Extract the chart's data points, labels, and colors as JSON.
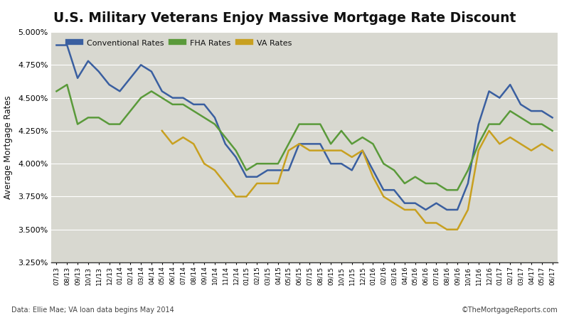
{
  "title": "U.S. Military Veterans Enjoy Massive Mortgage Rate Discount",
  "ylabel": "Average Mortgage Rates",
  "footnote_left": "Data: Ellie Mae; VA loan data begins May 2014",
  "footnote_right": "©TheMortgageReports.com",
  "ylim": [
    0.0325,
    0.05
  ],
  "yticks": [
    0.0325,
    0.035,
    0.0375,
    0.04,
    0.0425,
    0.045,
    0.0475,
    0.05
  ],
  "conventional_color": "#3a5fa0",
  "fha_color": "#5a9a3a",
  "va_color": "#c8a020",
  "line_width": 1.8,
  "bg_color": "#d8d8d0",
  "grid_color": "#ffffff",
  "x_labels": [
    "07/13",
    "08/13",
    "09/13",
    "10/13",
    "11/13",
    "12/13",
    "01/14",
    "02/14",
    "03/14",
    "04/14",
    "05/14",
    "06/14",
    "07/14",
    "08/14",
    "09/14",
    "10/14",
    "11/14",
    "12/14",
    "01/15",
    "02/15",
    "03/15",
    "04/15",
    "05/15",
    "06/15",
    "07/15",
    "08/15",
    "09/15",
    "10/15",
    "11/15",
    "12/15",
    "01/16",
    "02/16",
    "03/16",
    "04/16",
    "05/16",
    "06/16",
    "07/16",
    "08/16",
    "09/16",
    "10/16",
    "11/16",
    "12/16",
    "01/17",
    "02/17",
    "03/17",
    "04/17",
    "05/17",
    "06/17"
  ],
  "conventional": [
    0.049,
    0.049,
    0.0465,
    0.0478,
    0.047,
    0.046,
    0.0455,
    0.0465,
    0.0475,
    0.047,
    0.0455,
    0.045,
    0.045,
    0.0445,
    0.0445,
    0.0435,
    0.0415,
    0.0405,
    0.039,
    0.039,
    0.0395,
    0.0395,
    0.0395,
    0.0415,
    0.0415,
    0.0415,
    0.04,
    0.04,
    0.0395,
    0.041,
    0.0395,
    0.038,
    0.038,
    0.037,
    0.037,
    0.0365,
    0.037,
    0.0365,
    0.0365,
    0.0385,
    0.043,
    0.0455,
    0.045,
    0.046,
    0.0445,
    0.044,
    0.044,
    0.0435
  ],
  "fha": [
    0.0455,
    0.046,
    0.043,
    0.0435,
    0.0435,
    0.043,
    0.043,
    0.044,
    0.045,
    0.0455,
    0.045,
    0.0445,
    0.0445,
    0.044,
    0.0435,
    0.043,
    0.042,
    0.041,
    0.0395,
    0.04,
    0.04,
    0.04,
    0.0415,
    0.043,
    0.043,
    0.043,
    0.0415,
    0.0425,
    0.0415,
    0.042,
    0.0415,
    0.04,
    0.0395,
    0.0385,
    0.039,
    0.0385,
    0.0385,
    0.038,
    0.038,
    0.0395,
    0.0415,
    0.043,
    0.043,
    0.044,
    0.0435,
    0.043,
    0.043,
    0.0425
  ],
  "va": [
    null,
    null,
    null,
    null,
    null,
    null,
    null,
    null,
    null,
    null,
    0.0425,
    0.0415,
    0.042,
    0.0415,
    0.04,
    0.0395,
    0.0385,
    0.0375,
    0.0375,
    0.0385,
    0.0385,
    0.0385,
    0.041,
    0.0415,
    0.041,
    0.041,
    0.041,
    0.041,
    0.0405,
    0.041,
    0.039,
    0.0375,
    0.037,
    0.0365,
    0.0365,
    0.0355,
    0.0355,
    0.035,
    0.035,
    0.0365,
    0.041,
    0.0425,
    0.0415,
    0.042,
    0.0415,
    0.041,
    0.0415,
    0.041
  ]
}
